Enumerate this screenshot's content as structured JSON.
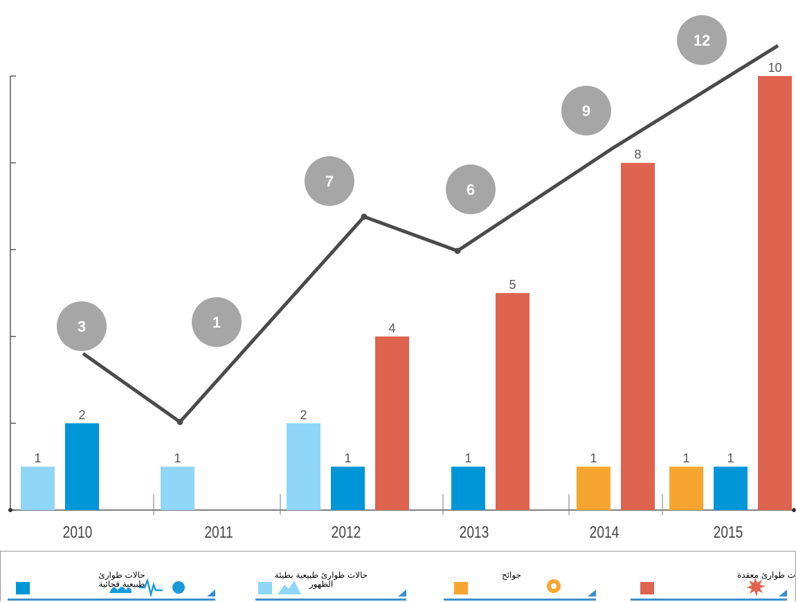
{
  "chart_data": {
    "type": "bar",
    "categories": [
      "2010",
      "2011",
      "2012",
      "2013",
      "2014",
      "2015"
    ],
    "ylim": [
      0,
      10
    ],
    "yticks": [
      0,
      2,
      4,
      6,
      8,
      10
    ],
    "series": [
      {
        "name": "حالات طوارئ طبيعية بطيئة الظهور",
        "color": "#8fd6f7",
        "values": [
          1,
          1,
          2,
          null,
          null,
          null
        ]
      },
      {
        "name": "جوائح",
        "color": "#f6a630",
        "values": [
          null,
          null,
          null,
          null,
          1,
          1
        ]
      },
      {
        "name": "حالات طوارئ طبيعية فجائية",
        "color": "#0096d8",
        "values": [
          2,
          null,
          1,
          1,
          null,
          1
        ]
      },
      {
        "name": "حالات طوارئ معقدة",
        "color": "#de6450",
        "values": [
          null,
          null,
          4,
          5,
          8,
          10
        ]
      }
    ],
    "totals": {
      "color": "#4a4a4a",
      "marker_color": "#a6a6a6",
      "values": [
        3,
        1,
        7,
        6,
        9,
        12
      ]
    }
  }
}
